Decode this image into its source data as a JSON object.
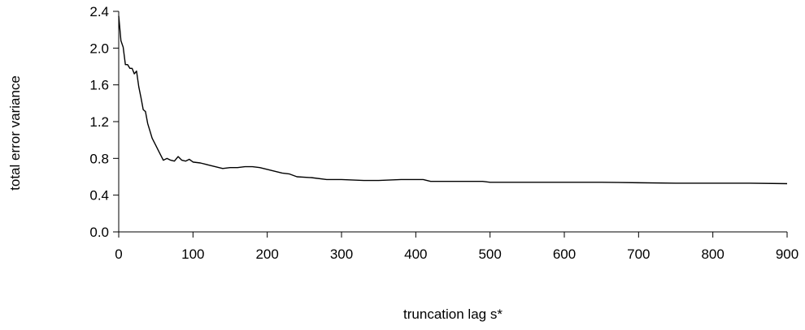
{
  "chart_data": {
    "type": "line",
    "title": "",
    "xlabel": "truncation lag s*",
    "ylabel": "total error variance",
    "xlim": [
      0,
      900
    ],
    "ylim": [
      0,
      2.4
    ],
    "x_ticks": [
      0,
      100,
      200,
      300,
      400,
      500,
      600,
      700,
      800,
      900
    ],
    "x_tick_labels": [
      "0",
      "100",
      "200",
      "300",
      "400",
      "500",
      "600",
      "700",
      "800",
      "900"
    ],
    "y_ticks": [
      0,
      0.4,
      0.8,
      1.2,
      1.6,
      2.0,
      2.4
    ],
    "y_tick_labels": [
      "0.0",
      "0.4",
      "0.8",
      "1.2",
      "1.6",
      "2.0",
      "2.4"
    ],
    "grid": false,
    "legend": "none",
    "line_color": "#000000",
    "series": [
      {
        "x": [
          0,
          3,
          6,
          9,
          12,
          15,
          18,
          21,
          24,
          27,
          30,
          33,
          36,
          39,
          42,
          45,
          50,
          55,
          60,
          65,
          70,
          75,
          80,
          85,
          90,
          95,
          100,
          110,
          120,
          130,
          140,
          150,
          160,
          170,
          180,
          190,
          200,
          210,
          220,
          230,
          240,
          260,
          280,
          300,
          330,
          350,
          380,
          400,
          410,
          420,
          440,
          460,
          490,
          500,
          550,
          600,
          650,
          700,
          750,
          800,
          850,
          900
        ],
        "y": [
          2.35,
          2.08,
          2.01,
          1.82,
          1.82,
          1.78,
          1.78,
          1.72,
          1.75,
          1.58,
          1.46,
          1.33,
          1.31,
          1.18,
          1.1,
          1.02,
          0.94,
          0.86,
          0.78,
          0.8,
          0.78,
          0.77,
          0.82,
          0.78,
          0.77,
          0.79,
          0.76,
          0.75,
          0.73,
          0.71,
          0.69,
          0.7,
          0.7,
          0.71,
          0.71,
          0.7,
          0.68,
          0.66,
          0.64,
          0.63,
          0.6,
          0.59,
          0.57,
          0.57,
          0.56,
          0.56,
          0.57,
          0.57,
          0.57,
          0.55,
          0.55,
          0.55,
          0.55,
          0.54,
          0.54,
          0.54,
          0.54,
          0.535,
          0.53,
          0.53,
          0.53,
          0.525
        ]
      }
    ]
  }
}
